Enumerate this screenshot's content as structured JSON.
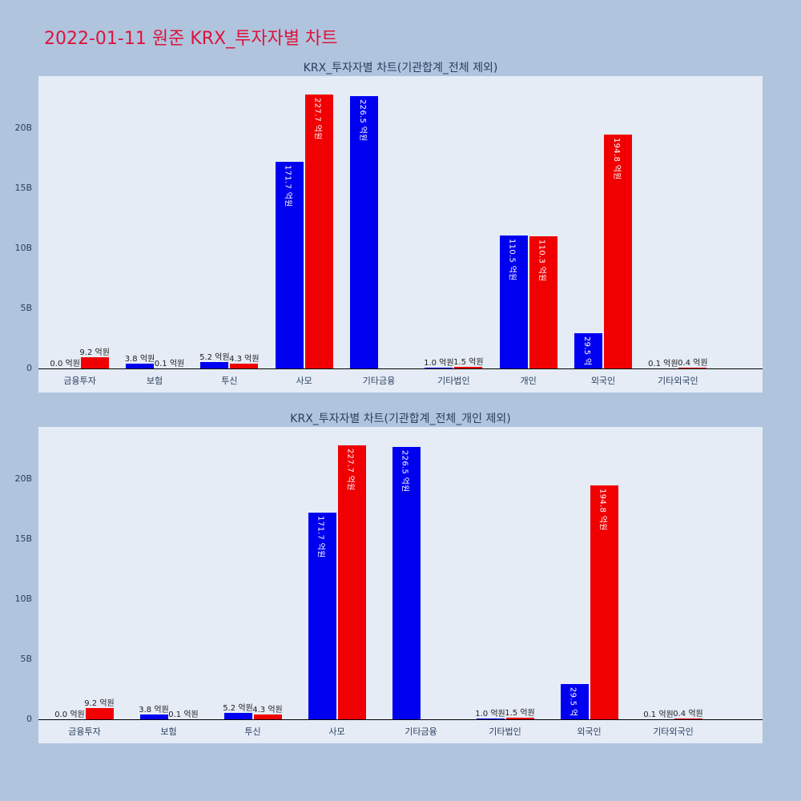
{
  "page": {
    "title": "2022-01-11 원준 KRX_투자자별 차트",
    "title_color": "#dc143c",
    "background": "#b0c4de"
  },
  "chart_data": [
    {
      "type": "bar",
      "title": "KRX_투자자별 차트(기관합계_전체 제외)",
      "unit": "억원",
      "plot_background": "#e5ecf6",
      "y_axis": {
        "tick_labels": [
          "0",
          "5B",
          "10B",
          "15B",
          "20B"
        ],
        "tick_values_eokwon": [
          0,
          50,
          100,
          150,
          200
        ],
        "max_value_eokwon": 243
      },
      "categories": [
        "금융투자",
        "보험",
        "투신",
        "사모",
        "기타금융",
        "기타법인",
        "개인",
        "외국인",
        "기타외국인"
      ],
      "series": [
        {
          "id": "blue",
          "color": "#0000f0",
          "values": [
            0.0,
            3.8,
            5.2,
            171.7,
            226.5,
            1.0,
            110.5,
            29.5,
            0.1
          ]
        },
        {
          "id": "red",
          "color": "#f00000",
          "values": [
            9.2,
            0.1,
            4.3,
            227.7,
            null,
            1.5,
            110.3,
            194.8,
            0.4
          ]
        }
      ]
    },
    {
      "type": "bar",
      "title": "KRX_투자자별 차트(기관합계_전체_개인 제외)",
      "unit": "억원",
      "plot_background": "#e5ecf6",
      "y_axis": {
        "tick_labels": [
          "0",
          "5B",
          "10B",
          "15B",
          "20B"
        ],
        "tick_values_eokwon": [
          0,
          50,
          100,
          150,
          200
        ],
        "max_value_eokwon": 243
      },
      "categories": [
        "금융투자",
        "보험",
        "투신",
        "사모",
        "기타금융",
        "기타법인",
        "외국인",
        "기타외국인"
      ],
      "series": [
        {
          "id": "blue",
          "color": "#0000f0",
          "values": [
            0.0,
            3.8,
            5.2,
            171.7,
            226.5,
            1.0,
            29.5,
            0.1
          ]
        },
        {
          "id": "red",
          "color": "#f00000",
          "values": [
            9.2,
            0.1,
            4.3,
            227.7,
            null,
            1.5,
            194.8,
            0.4
          ]
        }
      ]
    }
  ]
}
